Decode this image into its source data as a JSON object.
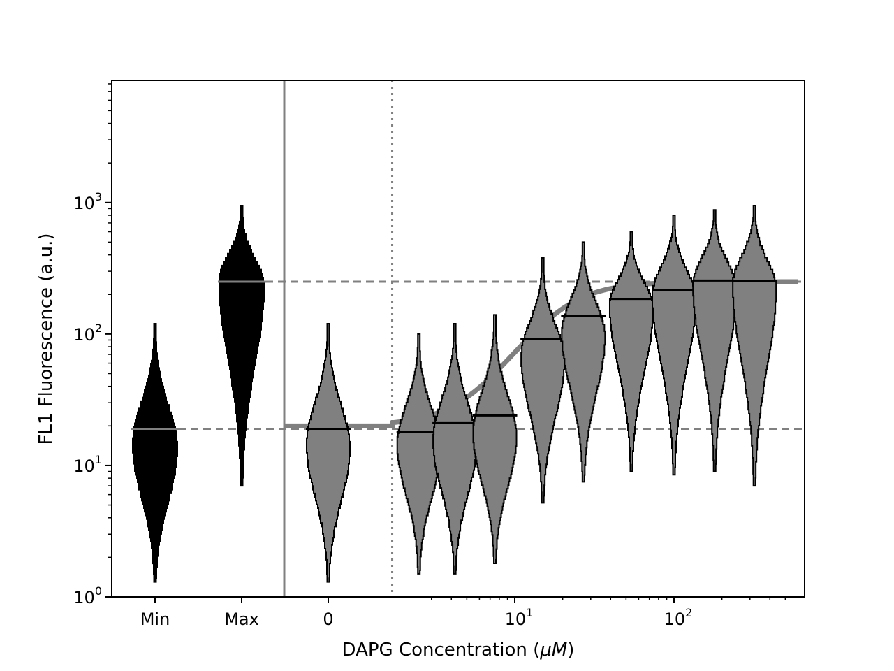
{
  "chart_data": {
    "type": "violin",
    "xlabel_text": "DAPG Concentration (",
    "xlabel_unit": "μM",
    "xlabel_close": ")",
    "ylabel": "FL1 Fluorescence (a.u.)",
    "y_scale": "log",
    "ylim": [
      1,
      8500
    ],
    "y_ticks": [
      {
        "base": "10",
        "exp": "0",
        "value": 1
      },
      {
        "base": "10",
        "exp": "1",
        "value": 10
      },
      {
        "base": "10",
        "exp": "2",
        "value": 100
      },
      {
        "base": "10",
        "exp": "3",
        "value": 1000
      }
    ],
    "x_scale": "symlog-like (categorical controls, zero, then log concentration)",
    "x_ticks": [
      {
        "label": "Min"
      },
      {
        "label": "Max"
      },
      {
        "label": "0"
      },
      {
        "base": "10",
        "exp": "1",
        "value": 10
      },
      {
        "base": "10",
        "exp": "2",
        "value": 100
      }
    ],
    "controls": [
      {
        "name": "Min",
        "median": 19,
        "min": 1.3,
        "max": 120,
        "peak": 14,
        "color": "#000000"
      },
      {
        "name": "Max",
        "median": 250,
        "min": 7,
        "max": 950,
        "peak": 240,
        "color": "#000000"
      }
    ],
    "samples": [
      {
        "concentration": 0,
        "median": 19,
        "min": 1.3,
        "max": 120,
        "peak": 14
      },
      {
        "concentration": 2.5,
        "median": 18,
        "min": 1.5,
        "max": 100,
        "peak": 14
      },
      {
        "concentration": 4.2,
        "median": 21,
        "min": 1.5,
        "max": 120,
        "peak": 15
      },
      {
        "concentration": 7.5,
        "median": 24,
        "min": 1.8,
        "max": 140,
        "peak": 17
      },
      {
        "concentration": 15,
        "median": 92,
        "min": 5.2,
        "max": 380,
        "peak": 65
      },
      {
        "concentration": 27,
        "median": 138,
        "min": 7.5,
        "max": 500,
        "peak": 100
      },
      {
        "concentration": 54,
        "median": 185,
        "min": 9,
        "max": 600,
        "peak": 160
      },
      {
        "concentration": 100,
        "median": 215,
        "min": 8.5,
        "max": 800,
        "peak": 190
      },
      {
        "concentration": 180,
        "median": 255,
        "min": 9,
        "max": 880,
        "peak": 230
      },
      {
        "concentration": 320,
        "median": 252,
        "min": 7,
        "max": 950,
        "peak": 230
      }
    ],
    "sample_color": "#808080",
    "reference_lines": {
      "min_level": 19,
      "max_level": 250,
      "style": "dashed",
      "color": "#808080"
    },
    "zero_cutoff_concentration": 1.7,
    "fit_model": {
      "low": 20,
      "high": 250,
      "k": 17,
      "n": 2.3,
      "color": "#808080"
    }
  }
}
